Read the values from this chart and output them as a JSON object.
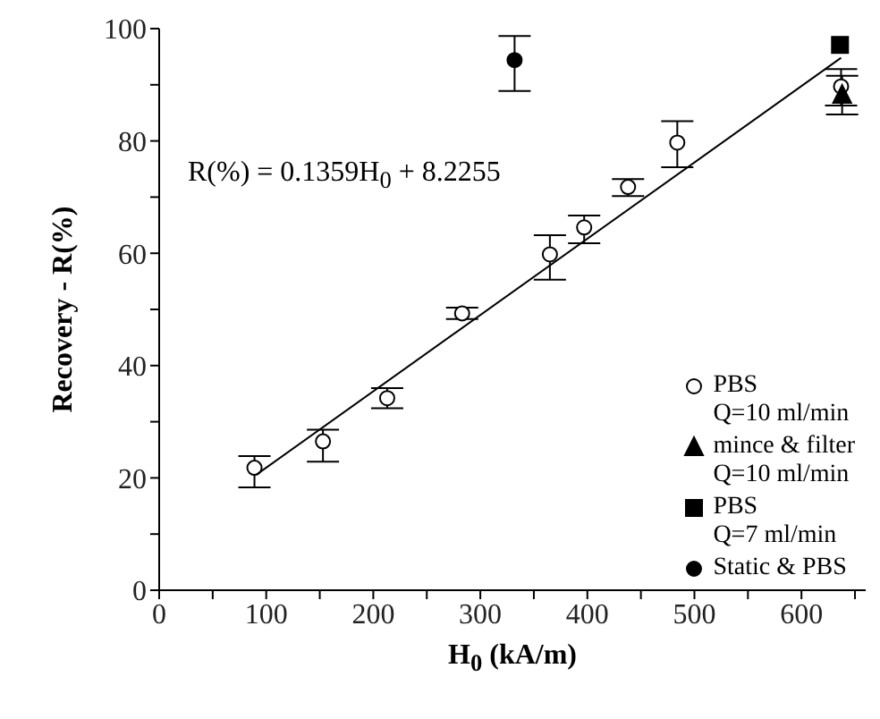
{
  "chart_data": {
    "type": "scatter",
    "xlabel": "H$_{0}$ (kA/m)",
    "ylabel": "Recovery - R(%)",
    "annotations": [
      "R(%) = 0.1359H$_{0}$ + 8.2255"
    ],
    "xlim": [
      0,
      660
    ],
    "ylim": [
      0,
      100
    ],
    "xticks": [
      0,
      {
        "value": 50,
        "label": null
      },
      100,
      {
        "value": 150,
        "label": null
      },
      200,
      {
        "value": 250,
        "label": null
      },
      300,
      {
        "value": 350,
        "label": null
      },
      400,
      {
        "value": 450,
        "label": null
      },
      500,
      {
        "value": 550,
        "label": null
      },
      600,
      {
        "value": 650,
        "label": null
      }
    ],
    "yticks": [
      0,
      {
        "value": 10,
        "label": null
      },
      20,
      {
        "value": 30,
        "label": null
      },
      40,
      {
        "value": 50,
        "label": null
      },
      60,
      {
        "value": 70,
        "label": null
      },
      80,
      {
        "value": 90,
        "label": null
      },
      100
    ],
    "legend": "bottom right",
    "series": [
      {
        "name": "PBS\nQ=10 ml/min",
        "color": "#ffffff",
        "marker": "circle",
        "x": [
          89,
          153,
          213,
          283,
          365,
          397,
          438,
          484,
          637
        ],
        "values": [
          21.8,
          26.5,
          34.2,
          49.3,
          59.8,
          64.6,
          71.8,
          79.7,
          89.7
        ],
        "errors": [
          [
            18.3,
            23.9
          ],
          [
            22.9,
            28.6
          ],
          [
            32.4,
            36
          ],
          [
            48.3,
            50.3
          ],
          [
            55.3,
            63.2
          ],
          [
            61.8,
            66.7
          ],
          [
            70.2,
            73.2
          ],
          [
            75.3,
            83.5
          ],
          [
            86.3,
            92.8
          ]
        ]
      },
      {
        "name": "mince & filter\nQ=10 ml/min",
        "color": "#000000",
        "marker": "triangle",
        "x": [
          638
        ],
        "values": [
          88.2
        ],
        "errors": [
          [
            84.7,
            91.6
          ]
        ]
      },
      {
        "name": "PBS\nQ=7 ml/min",
        "color": "#000000",
        "marker": "square",
        "x": [
          636
        ],
        "values": [
          97.1
        ]
      },
      {
        "name": "Static & PBS",
        "color": "#000000",
        "marker": "circle",
        "x": [
          332
        ],
        "values": [
          94.4
        ],
        "errors": [
          [
            88.9,
            98.7
          ]
        ]
      },
      {
        "type": "line",
        "color": "#000000",
        "marker": "none",
        "line_style": "solid",
        "x": [
          91,
          637
        ],
        "values": [
          20.6,
          94.8
        ]
      }
    ]
  }
}
